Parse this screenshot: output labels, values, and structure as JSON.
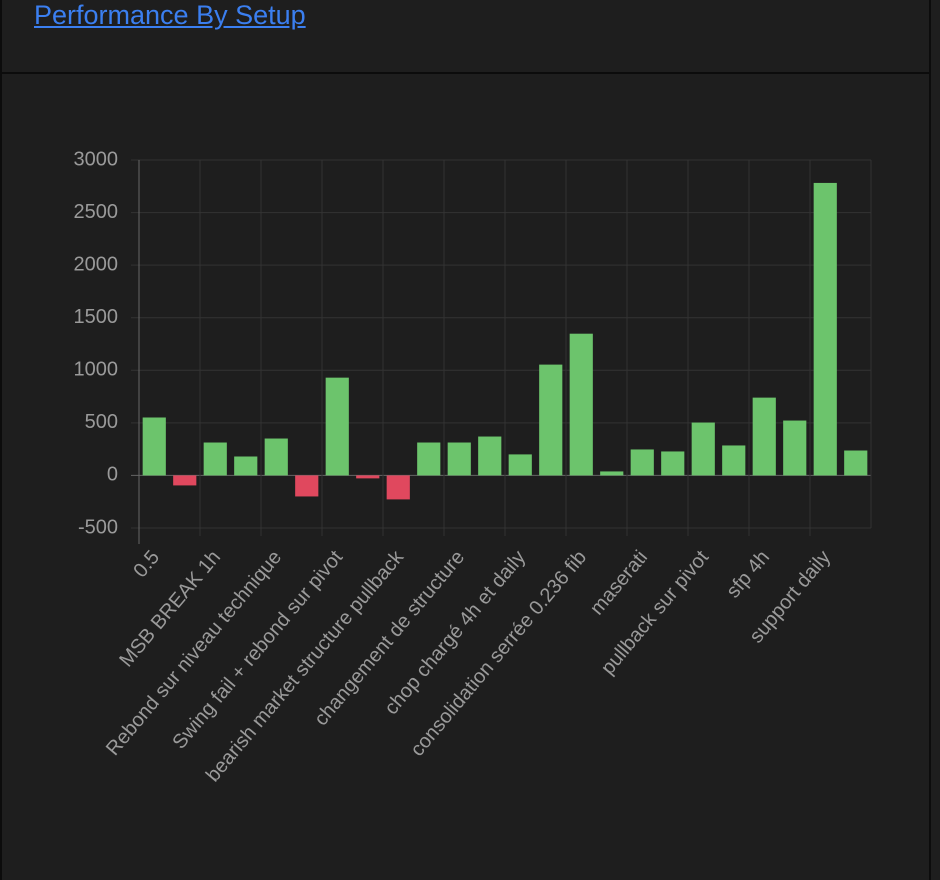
{
  "title": "Performance By Setup",
  "chart_data": {
    "type": "bar",
    "categories": [
      "0.5",
      null,
      "MSB BREAK 1h",
      null,
      "Rebond sur niveau technique",
      null,
      "Swing fail + rebond sur pivot",
      null,
      "bearish market structure pullback",
      null,
      "changement de structure",
      null,
      "chop chargé 4h et daily",
      null,
      "consolidation serrée 0.236 fib",
      null,
      "maserati",
      null,
      "pullback sur pivot",
      null,
      "sfp 4h",
      null,
      "support daily",
      null
    ],
    "values": [
      551,
      -95,
      313,
      180,
      351,
      -200,
      930,
      -28,
      -228,
      313,
      313,
      370,
      200,
      1054,
      1348,
      38,
      247,
      228,
      503,
      285,
      740,
      522,
      2782,
      237
    ],
    "positive_color": "#6cc46c",
    "negative_color": "#e0485e",
    "ylim": [
      -500,
      3000
    ],
    "yticks": [
      -500,
      0,
      500,
      1000,
      1500,
      2000,
      2500,
      3000
    ],
    "grid": true
  }
}
